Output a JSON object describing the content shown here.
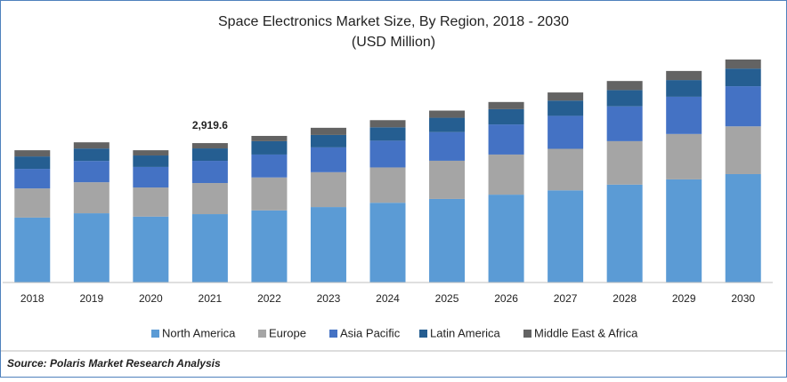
{
  "chart_data": {
    "type": "stacked_bar",
    "title": "Space Electronics Market  Size, By Region, 2018 - 2030",
    "subtitle": "(USD Million)",
    "categories": [
      "2018",
      "2019",
      "2020",
      "2021",
      "2022",
      "2023",
      "2024",
      "2025",
      "2026",
      "2027",
      "2028",
      "2029",
      "2030"
    ],
    "series": [
      {
        "name": "North America",
        "color": "#5b9bd5",
        "values": [
          1360,
          1450,
          1380,
          1432,
          1510,
          1580,
          1670,
          1750,
          1840,
          1930,
          2050,
          2160,
          2270
        ]
      },
      {
        "name": "Europe",
        "color": "#a5a5a5",
        "values": [
          610,
          650,
          610,
          651,
          690,
          730,
          740,
          800,
          840,
          870,
          910,
          950,
          1000
        ]
      },
      {
        "name": "Asia Pacific",
        "color": "#4472c4",
        "values": [
          410,
          446,
          430,
          465,
          480,
          520,
          560,
          600,
          630,
          690,
          730,
          780,
          840
        ]
      },
      {
        "name": "Latin America",
        "color": "#255e91",
        "values": [
          260,
          260,
          240,
          260.4,
          280,
          260,
          280,
          300,
          320,
          320,
          340,
          350,
          370
        ]
      },
      {
        "name": "Middle East & Africa",
        "color": "#636363",
        "values": [
          130,
          130,
          110,
          111.2,
          110,
          150,
          150,
          150,
          150,
          170,
          190,
          190,
          190
        ]
      }
    ],
    "ylim": [
      0,
      4800
    ],
    "annotations": [
      {
        "label": "2,919.6",
        "value": 2919.6,
        "category": "2021"
      }
    ],
    "source": "Source: Polaris Market Research Analysis",
    "legend": "bottom"
  }
}
